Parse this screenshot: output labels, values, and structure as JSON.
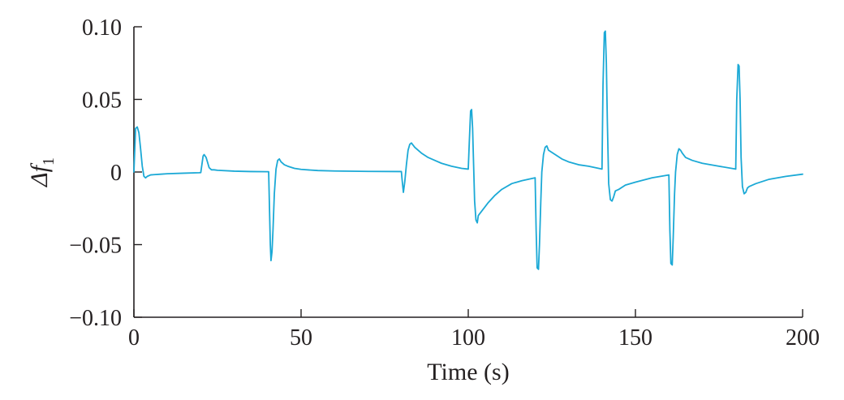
{
  "chart_data": {
    "type": "line",
    "title": "",
    "xlabel": "Time (s)",
    "ylabel_main": "Δf",
    "ylabel_sub": "1",
    "xlim": [
      0,
      200
    ],
    "ylim": [
      -0.1,
      0.1
    ],
    "x_ticks": [
      0,
      50,
      100,
      150,
      200
    ],
    "x_tick_labels": [
      "0",
      "50",
      "100",
      "150",
      "200"
    ],
    "y_ticks": [
      0.1,
      0.05,
      0,
      -0.05,
      -0.1
    ],
    "y_tick_labels": [
      "0.10",
      "0.05",
      "0",
      "−0.05",
      "−0.10"
    ],
    "grid": false,
    "legend": "none",
    "colors": {
      "series": "#1ba9d6",
      "axis": "#231f20"
    },
    "series": [
      {
        "x": [
          0,
          0.5,
          1,
          1.5,
          2,
          2.5,
          3,
          3.5,
          4,
          5,
          6,
          8,
          10,
          15,
          19.5,
          20,
          20.7,
          21,
          21.6,
          22.5,
          23.2,
          24,
          25,
          30,
          35,
          40,
          40.3,
          40.8,
          41,
          41.3,
          41.6,
          42,
          42.5,
          43,
          43.5,
          44,
          45,
          46,
          48,
          50,
          55,
          60,
          70,
          80,
          80.2,
          80.6,
          81,
          81.5,
          82,
          82.5,
          83,
          84,
          86,
          88,
          90,
          92,
          95,
          98,
          100,
          100.3,
          100.7,
          101,
          101.3,
          101.6,
          101.9,
          102.3,
          102.7,
          103,
          104,
          106,
          108,
          110,
          113,
          116,
          120,
          120.3,
          120.6,
          121,
          121.3,
          121.7,
          122,
          122.5,
          123,
          123.5,
          124,
          126,
          128,
          130,
          133,
          136,
          140,
          140.3,
          140.7,
          141,
          141.3,
          141.6,
          142,
          142.5,
          143,
          143.5,
          144,
          145,
          147,
          150,
          155,
          160,
          160.3,
          160.6,
          161,
          161.3,
          161.7,
          162,
          162.5,
          163,
          163.5,
          164,
          165,
          167,
          170,
          175,
          180,
          180.3,
          180.7,
          181,
          181.3,
          181.6,
          182,
          182.5,
          183,
          183.5,
          184,
          186,
          190,
          195,
          200
        ],
        "y": [
          0,
          0.03,
          0.031,
          0.027,
          0.016,
          0.004,
          -0.003,
          -0.004,
          -0.003,
          -0.002,
          -0.0018,
          -0.0015,
          -0.0012,
          -0.0008,
          -0.0005,
          -0.0004,
          0.011,
          0.012,
          0.01,
          0.003,
          0.0015,
          0.0015,
          0.0012,
          0.0006,
          0.0003,
          0.0002,
          0.0002,
          -0.05,
          -0.061,
          -0.055,
          -0.04,
          -0.015,
          0.002,
          0.008,
          0.009,
          0.007,
          0.005,
          0.004,
          0.0025,
          0.0018,
          0.001,
          0.0007,
          0.0004,
          0.0003,
          -0.005,
          -0.014,
          -0.007,
          0.005,
          0.015,
          0.019,
          0.02,
          0.017,
          0.013,
          0.01,
          0.008,
          0.006,
          0.004,
          0.0025,
          0.002,
          0.02,
          0.042,
          0.043,
          0.03,
          0.005,
          -0.02,
          -0.033,
          -0.035,
          -0.03,
          -0.027,
          -0.021,
          -0.016,
          -0.012,
          -0.008,
          -0.006,
          -0.004,
          -0.04,
          -0.066,
          -0.067,
          -0.05,
          -0.02,
          0,
          0.012,
          0.017,
          0.018,
          0.015,
          0.012,
          0.009,
          0.007,
          0.005,
          0.004,
          0.002,
          0.06,
          0.096,
          0.097,
          0.075,
          0.035,
          -0.008,
          -0.019,
          -0.02,
          -0.017,
          -0.013,
          -0.012,
          -0.009,
          -0.007,
          -0.004,
          -0.002,
          -0.04,
          -0.063,
          -0.064,
          -0.045,
          -0.015,
          0,
          0.012,
          0.016,
          0.015,
          0.013,
          0.01,
          0.008,
          0.006,
          0.004,
          0.002,
          0.05,
          0.074,
          0.073,
          0.05,
          0.01,
          -0.01,
          -0.015,
          -0.014,
          -0.011,
          -0.01,
          -0.008,
          -0.005,
          -0.003,
          -0.0015
        ]
      }
    ]
  }
}
